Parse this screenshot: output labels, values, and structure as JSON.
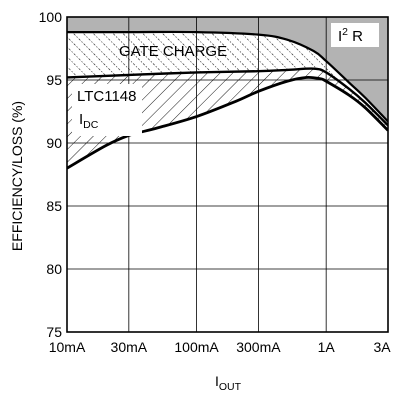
{
  "chart_data": {
    "type": "line",
    "xlabel": "I",
    "xlabel_sub": "OUT",
    "ylabel": "EFFICIENCY/LOSS (%)",
    "x_scale": "log",
    "xlim": [
      0.01,
      3
    ],
    "ylim": [
      75,
      100
    ],
    "x_ticks": [
      {
        "value": 0.01,
        "label": "10mA"
      },
      {
        "value": 0.03,
        "label": "30mA"
      },
      {
        "value": 0.1,
        "label": "100mA"
      },
      {
        "value": 0.3,
        "label": "300mA"
      },
      {
        "value": 1,
        "label": "1A"
      },
      {
        "value": 3,
        "label": "3A"
      }
    ],
    "y_ticks": [
      75,
      80,
      85,
      90,
      95,
      100
    ],
    "grid": true,
    "series": [
      {
        "key": "top_boundary",
        "x": [
          0.01,
          0.03,
          0.1,
          0.3,
          0.5,
          0.8,
          1,
          1.5,
          2,
          3
        ],
        "y": [
          98.8,
          98.8,
          98.8,
          98.6,
          98.2,
          97.3,
          96.5,
          94.8,
          93.6,
          91.7
        ]
      },
      {
        "key": "middle_boundary",
        "x": [
          0.01,
          0.03,
          0.1,
          0.3,
          0.5,
          0.8,
          1,
          1.5,
          2,
          3
        ],
        "y": [
          95.2,
          95.4,
          95.6,
          95.7,
          95.8,
          95.9,
          95.6,
          94.3,
          93.2,
          91.4
        ]
      },
      {
        "key": "efficiency",
        "x": [
          0.01,
          0.02,
          0.03,
          0.05,
          0.1,
          0.2,
          0.3,
          0.5,
          0.7,
          0.9,
          1,
          1.5,
          2,
          3
        ],
        "y": [
          88.0,
          89.8,
          90.6,
          91.2,
          92.1,
          93.3,
          94.1,
          94.9,
          95.2,
          95.1,
          94.9,
          93.8,
          92.8,
          91.0
        ]
      }
    ],
    "annotations": [
      {
        "text": "GATE CHARGE",
        "region": "between top and middle boundary"
      },
      {
        "text": "I",
        "sub": "2",
        "text_after": " R",
        "region": "above top boundary, top-right"
      },
      {
        "text": "LTC1148",
        "region": "between middle boundary and efficiency"
      },
      {
        "text": "I",
        "sub": "DC",
        "region": "between middle boundary and efficiency"
      }
    ],
    "colors": {
      "i2r_fill": "#b3b3b3",
      "curve": "#000000",
      "grid": "#000000"
    }
  }
}
